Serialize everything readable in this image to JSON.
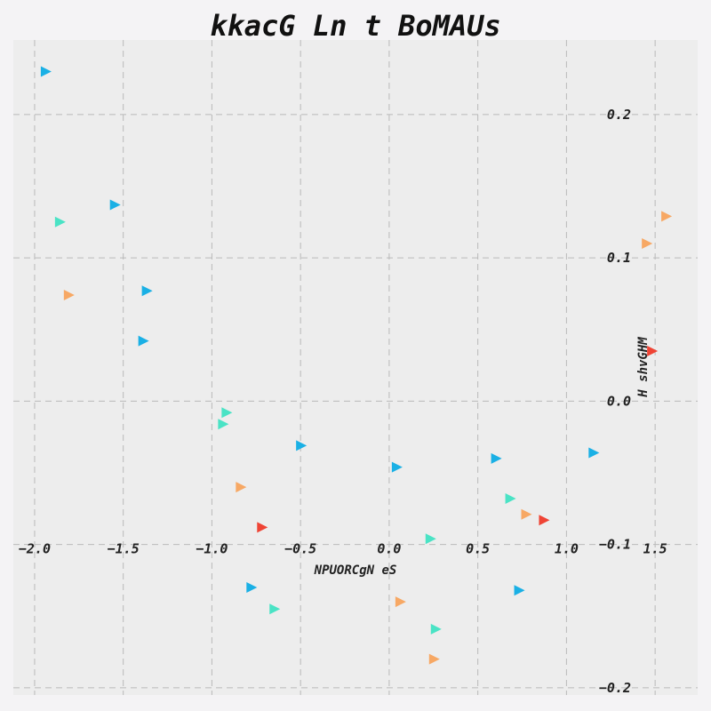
{
  "chart_data": {
    "type": "scatter",
    "title": "kkacG Ln t BoMAUs",
    "xlabel": "NPUORCgN eS",
    "ylabel": "H shvGHM",
    "xlim": [
      -2.12,
      1.74
    ],
    "ylim": [
      -0.205,
      0.252
    ],
    "x_ticks": [
      -2.0,
      -1.5,
      -1.0,
      -0.5,
      0.0,
      0.5,
      1.0,
      1.5
    ],
    "x_tick_labels": [
      "−2.0",
      "−1.5",
      "−1.0",
      "−0.5",
      "0.0",
      "0.5",
      "1.0",
      "1.5"
    ],
    "y_ticks": [
      0.2,
      0.1,
      0.0,
      -0.1,
      -0.2
    ],
    "y_tick_labels": [
      "0.2",
      "0.1",
      "0.0",
      "−0.1",
      "−0.2"
    ],
    "grid": true,
    "marker": "triangle-right",
    "colors": {
      "blue": "#1ab0e5",
      "turquoise": "#4ae3c5",
      "orange": "#f7a864",
      "red": "#ef4435",
      "background": "#ededed"
    },
    "series": [
      {
        "color_key": "blue",
        "points": [
          {
            "x": -1.94,
            "y": 0.23
          },
          {
            "x": -1.55,
            "y": 0.137
          },
          {
            "x": -1.37,
            "y": 0.077
          },
          {
            "x": -1.39,
            "y": 0.042
          },
          {
            "x": -0.5,
            "y": -0.031
          },
          {
            "x": 0.04,
            "y": -0.046
          },
          {
            "x": 0.6,
            "y": -0.04
          },
          {
            "x": 1.15,
            "y": -0.036
          },
          {
            "x": -0.78,
            "y": -0.13
          },
          {
            "x": 0.73,
            "y": -0.132
          }
        ]
      },
      {
        "color_key": "turquoise",
        "points": [
          {
            "x": -1.86,
            "y": 0.125
          },
          {
            "x": -0.92,
            "y": -0.008
          },
          {
            "x": -0.94,
            "y": -0.016
          },
          {
            "x": 0.68,
            "y": -0.068
          },
          {
            "x": 0.23,
            "y": -0.096
          },
          {
            "x": -0.65,
            "y": -0.145
          },
          {
            "x": 0.26,
            "y": -0.159
          }
        ]
      },
      {
        "color_key": "orange",
        "points": [
          {
            "x": -1.81,
            "y": 0.074
          },
          {
            "x": 1.56,
            "y": 0.129
          },
          {
            "x": 1.45,
            "y": 0.11
          },
          {
            "x": -0.84,
            "y": -0.06
          },
          {
            "x": 0.77,
            "y": -0.079
          },
          {
            "x": 0.06,
            "y": -0.14
          },
          {
            "x": 0.25,
            "y": -0.18
          }
        ]
      },
      {
        "color_key": "red",
        "points": [
          {
            "x": 1.48,
            "y": 0.035
          },
          {
            "x": -0.72,
            "y": -0.088
          },
          {
            "x": 0.87,
            "y": -0.083
          }
        ]
      }
    ]
  }
}
